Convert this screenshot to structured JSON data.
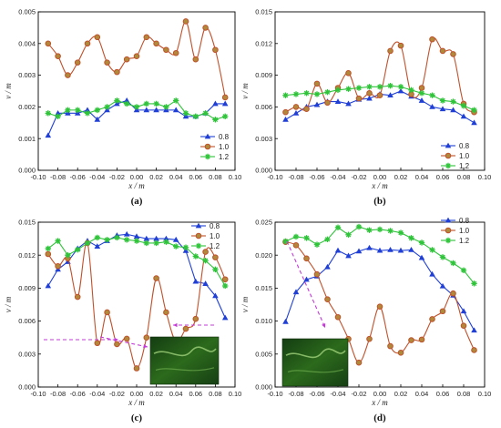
{
  "chart_data": [
    {
      "type": "line",
      "panel_label": "(a)",
      "xlabel": "x / m",
      "ylabel": "v / m",
      "xlim": [
        -0.1,
        0.1
      ],
      "ylim": [
        0,
        0.005
      ],
      "xticks": [
        "-0.10",
        "-0.08",
        "-0.06",
        "-0.04",
        "-0.02",
        "0.00",
        "0.02",
        "0.04",
        "0.06",
        "0.08",
        "0.10"
      ],
      "yticks": [
        "0.000",
        "0.001",
        "0.002",
        "0.003",
        "0.004",
        "0.005"
      ],
      "legend_position": "bottom-right",
      "series": [
        {
          "name": "0.8",
          "color": "#1f3fd6",
          "marker": "triangle",
          "x": [
            -0.09,
            -0.08,
            -0.07,
            -0.06,
            -0.05,
            -0.04,
            -0.03,
            -0.02,
            -0.01,
            0.0,
            0.01,
            0.02,
            0.03,
            0.04,
            0.05,
            0.06,
            0.07,
            0.08,
            0.09
          ],
          "y": [
            0.0011,
            0.0018,
            0.0018,
            0.0018,
            0.0019,
            0.0016,
            0.0019,
            0.0021,
            0.0022,
            0.0019,
            0.0019,
            0.0019,
            0.0019,
            0.0019,
            0.0017,
            0.0017,
            0.0018,
            0.0021,
            0.0021
          ]
        },
        {
          "name": "1.0",
          "color": "#c0502a",
          "marker": "circle",
          "x": [
            -0.09,
            -0.08,
            -0.07,
            -0.06,
            -0.05,
            -0.04,
            -0.03,
            -0.02,
            -0.01,
            0.0,
            0.01,
            0.02,
            0.03,
            0.04,
            0.05,
            0.06,
            0.07,
            0.08,
            0.09
          ],
          "y": [
            0.004,
            0.0036,
            0.003,
            0.0034,
            0.004,
            0.0042,
            0.0034,
            0.0031,
            0.0035,
            0.0036,
            0.0042,
            0.004,
            0.0038,
            0.0037,
            0.0047,
            0.0035,
            0.0045,
            0.0038,
            0.0023
          ]
        },
        {
          "name": "1.2",
          "color": "#2fc43a",
          "marker": "star",
          "x": [
            -0.09,
            -0.08,
            -0.07,
            -0.06,
            -0.05,
            -0.04,
            -0.03,
            -0.02,
            -0.01,
            0.0,
            0.01,
            0.02,
            0.03,
            0.04,
            0.05,
            0.06,
            0.07,
            0.08,
            0.09
          ],
          "y": [
            0.0018,
            0.0017,
            0.0019,
            0.0019,
            0.0018,
            0.0019,
            0.002,
            0.0022,
            0.0021,
            0.002,
            0.0021,
            0.0021,
            0.002,
            0.0022,
            0.0018,
            0.0017,
            0.0018,
            0.0016,
            0.0017
          ]
        }
      ]
    },
    {
      "type": "line",
      "panel_label": "(b)",
      "xlabel": "x / m",
      "ylabel": "v / m",
      "xlim": [
        -0.1,
        0.1
      ],
      "ylim": [
        0,
        0.015
      ],
      "xticks": [
        "-0.10",
        "-0.08",
        "-0.06",
        "-0.04",
        "-0.02",
        "0.00",
        "0.02",
        "0.04",
        "0.06",
        "0.08",
        "0.10"
      ],
      "yticks": [
        "0.000",
        "0.003",
        "0.006",
        "0.009",
        "0.012",
        "0.015"
      ],
      "legend_position": "bottom-right",
      "series": [
        {
          "name": "0.8",
          "color": "#1f3fd6",
          "marker": "triangle",
          "x": [
            -0.09,
            -0.08,
            -0.07,
            -0.06,
            -0.05,
            -0.04,
            -0.03,
            -0.02,
            -0.01,
            0.0,
            0.01,
            0.02,
            0.03,
            0.04,
            0.05,
            0.06,
            0.07,
            0.08,
            0.09
          ],
          "y": [
            0.0048,
            0.0054,
            0.006,
            0.0062,
            0.0065,
            0.0065,
            0.0063,
            0.0067,
            0.0068,
            0.0072,
            0.0071,
            0.0075,
            0.007,
            0.0066,
            0.006,
            0.0058,
            0.0057,
            0.0051,
            0.0045
          ]
        },
        {
          "name": "1.0",
          "color": "#c0502a",
          "marker": "circle",
          "x": [
            -0.09,
            -0.08,
            -0.07,
            -0.06,
            -0.05,
            -0.04,
            -0.03,
            -0.02,
            -0.01,
            0.0,
            0.01,
            0.02,
            0.03,
            0.04,
            0.05,
            0.06,
            0.07,
            0.08,
            0.09
          ],
          "y": [
            0.0055,
            0.006,
            0.0058,
            0.0082,
            0.0064,
            0.0078,
            0.0092,
            0.0068,
            0.0073,
            0.0071,
            0.0113,
            0.0118,
            0.0072,
            0.0078,
            0.0124,
            0.0113,
            0.011,
            0.0063,
            0.0055
          ]
        },
        {
          "name": "1.2",
          "color": "#2fc43a",
          "marker": "star",
          "x": [
            -0.09,
            -0.08,
            -0.07,
            -0.06,
            -0.05,
            -0.04,
            -0.03,
            -0.02,
            -0.01,
            0.0,
            0.01,
            0.02,
            0.03,
            0.04,
            0.05,
            0.06,
            0.07,
            0.08,
            0.09
          ],
          "y": [
            0.0071,
            0.0072,
            0.0073,
            0.0072,
            0.0074,
            0.0076,
            0.0077,
            0.0078,
            0.0079,
            0.0079,
            0.008,
            0.0079,
            0.0076,
            0.0073,
            0.0071,
            0.0066,
            0.0065,
            0.0061,
            0.0057
          ]
        }
      ]
    },
    {
      "type": "line",
      "panel_label": "(c)",
      "xlabel": "x / m",
      "ylabel": "v / m",
      "xlim": [
        -0.1,
        0.1
      ],
      "ylim": [
        0,
        0.015
      ],
      "xticks": [
        "-0.10",
        "-0.08",
        "-0.06",
        "-0.04",
        "-0.02",
        "0.00",
        "0.02",
        "0.04",
        "0.06",
        "0.08",
        "0.10"
      ],
      "yticks": [
        "0.000",
        "0.003",
        "0.006",
        "0.009",
        "0.012",
        "0.015"
      ],
      "legend_position": "top-right",
      "inset": "green microscope photograph",
      "series": [
        {
          "name": "0.8",
          "color": "#1f3fd6",
          "marker": "triangle",
          "x": [
            -0.09,
            -0.08,
            -0.07,
            -0.06,
            -0.05,
            -0.04,
            -0.03,
            -0.02,
            -0.01,
            0.0,
            0.01,
            0.02,
            0.03,
            0.04,
            0.05,
            0.06,
            0.07,
            0.08,
            0.09
          ],
          "y": [
            0.0092,
            0.0107,
            0.0114,
            0.0126,
            0.0133,
            0.0128,
            0.0133,
            0.0138,
            0.0139,
            0.0137,
            0.0135,
            0.0135,
            0.0135,
            0.0134,
            0.0124,
            0.0096,
            0.0094,
            0.0083,
            0.0063
          ]
        },
        {
          "name": "1.0",
          "color": "#c0502a",
          "marker": "circle",
          "x": [
            -0.09,
            -0.08,
            -0.07,
            -0.06,
            -0.05,
            -0.04,
            -0.03,
            -0.02,
            -0.01,
            0.0,
            0.01,
            0.02,
            0.03,
            0.04,
            0.05,
            0.06,
            0.07,
            0.08,
            0.09
          ],
          "y": [
            0.0121,
            0.011,
            0.0117,
            0.0082,
            0.0131,
            0.004,
            0.0068,
            0.0039,
            0.0044,
            0.0017,
            0.0045,
            0.0099,
            0.0068,
            0.0041,
            0.0053,
            0.0062,
            0.0123,
            0.0118,
            0.0098
          ]
        },
        {
          "name": "1.2",
          "color": "#2fc43a",
          "marker": "star",
          "x": [
            -0.09,
            -0.08,
            -0.07,
            -0.06,
            -0.05,
            -0.04,
            -0.03,
            -0.02,
            -0.01,
            0.0,
            0.01,
            0.02,
            0.03,
            0.04,
            0.05,
            0.06,
            0.07,
            0.08,
            0.09
          ],
          "y": [
            0.0126,
            0.0133,
            0.012,
            0.0125,
            0.0131,
            0.0136,
            0.0134,
            0.0136,
            0.0134,
            0.0133,
            0.0131,
            0.0131,
            0.0132,
            0.0128,
            0.0127,
            0.0119,
            0.0115,
            0.0107,
            0.0092
          ]
        }
      ]
    },
    {
      "type": "line",
      "panel_label": "(d)",
      "xlabel": "x / m",
      "ylabel": "v / m",
      "xlim": [
        -0.1,
        0.1
      ],
      "ylim": [
        0,
        0.025
      ],
      "xticks": [
        "-0.10",
        "-0.08",
        "-0.06",
        "-0.04",
        "-0.02",
        "0.00",
        "0.02",
        "0.04",
        "0.06",
        "0.08",
        "0.10"
      ],
      "yticks": [
        "0.000",
        "0.005",
        "0.010",
        "0.015",
        "0.020",
        "0.025"
      ],
      "legend_position": "top-right",
      "inset": "green microscope photograph",
      "series": [
        {
          "name": "0.8",
          "color": "#1f3fd6",
          "marker": "triangle",
          "x": [
            -0.09,
            -0.08,
            -0.07,
            -0.06,
            -0.05,
            -0.04,
            -0.03,
            -0.02,
            -0.01,
            0.0,
            0.01,
            0.02,
            0.03,
            0.04,
            0.05,
            0.06,
            0.07,
            0.08,
            0.09
          ],
          "y": [
            0.0099,
            0.0144,
            0.0163,
            0.0168,
            0.0182,
            0.0207,
            0.0199,
            0.0206,
            0.0211,
            0.0207,
            0.0208,
            0.0207,
            0.0208,
            0.0196,
            0.0171,
            0.0153,
            0.0139,
            0.0115,
            0.0086
          ]
        },
        {
          "name": "1.0",
          "color": "#c0502a",
          "marker": "circle",
          "x": [
            -0.09,
            -0.08,
            -0.07,
            -0.06,
            -0.05,
            -0.04,
            -0.03,
            -0.02,
            -0.01,
            0.0,
            0.01,
            0.02,
            0.03,
            0.04,
            0.05,
            0.06,
            0.07,
            0.08,
            0.09
          ],
          "y": [
            0.022,
            0.0215,
            0.0195,
            0.0171,
            0.0133,
            0.0106,
            0.0073,
            0.0037,
            0.0073,
            0.0122,
            0.0062,
            0.0052,
            0.0071,
            0.0072,
            0.0103,
            0.0115,
            0.0142,
            0.0093,
            0.0056
          ]
        },
        {
          "name": "1.2",
          "color": "#2fc43a",
          "marker": "star",
          "x": [
            -0.09,
            -0.08,
            -0.07,
            -0.06,
            -0.05,
            -0.04,
            -0.03,
            -0.02,
            -0.01,
            0.0,
            0.01,
            0.02,
            0.03,
            0.04,
            0.05,
            0.06,
            0.07,
            0.08,
            0.09
          ],
          "y": [
            0.0221,
            0.0228,
            0.0226,
            0.0216,
            0.0224,
            0.0242,
            0.0231,
            0.0243,
            0.0238,
            0.0239,
            0.0237,
            0.0234,
            0.0226,
            0.0219,
            0.0208,
            0.0197,
            0.0188,
            0.0177,
            0.0157
          ]
        }
      ]
    }
  ]
}
